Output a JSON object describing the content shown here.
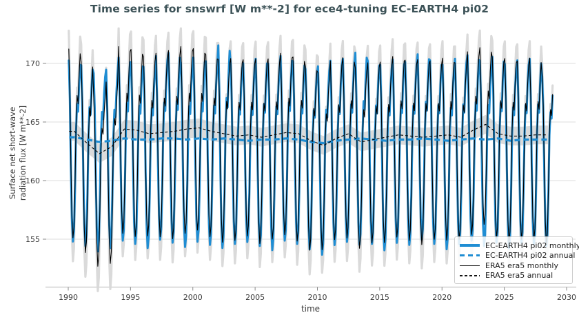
{
  "title": "Time series for snswrf [W m**-2] for ece4-tuning EC-EARTH4 pi02",
  "colors": {
    "ec_blue": "#1f8dd3",
    "era5_black": "#000000",
    "band_gray": "#bdbdbd",
    "shadow_gray": "#d6d6d6",
    "grid_gray": "#dcdcdc",
    "spine_gray": "#c4c4c4",
    "tick_gray": "#8a8a8a",
    "tick_label_color": "#3a3a3a",
    "title_color": "#3c5257"
  },
  "axes": {
    "xlabel": "time",
    "ylabel_line1": "Surface net short-wave",
    "ylabel_line2": "radiation flux [W m**-2]"
  },
  "legend": {
    "position": "lower right",
    "items": [
      {
        "label": "EC-EARTH4 pi02 monthly",
        "style": "solid",
        "color": "#1f8dd3",
        "thick": true
      },
      {
        "label": "EC-EARTH4 pi02 annual",
        "style": "dashed",
        "color": "#1f8dd3",
        "thick": true
      },
      {
        "label": "ERA5 era5 monthly",
        "style": "solid",
        "color": "#000000",
        "thick": false
      },
      {
        "label": "ERA5 era5 annual",
        "style": "dashed",
        "color": "#000000",
        "thick": false
      }
    ]
  },
  "chart_data": {
    "type": "line",
    "title": "Time series for snswrf [W m**-2] for ece4-tuning EC-EARTH4 pi02",
    "xlabel": "time",
    "ylabel": "Surface net short-wave radiation flux [W m**-2]",
    "x_ticks": [
      1990,
      1995,
      2000,
      2005,
      2010,
      2015,
      2020,
      2025,
      2030
    ],
    "y_ticks": [
      155,
      160,
      165,
      170
    ],
    "xlim": [
      1988.2,
      2030.7
    ],
    "ylim": [
      151.5,
      172.7
    ],
    "grid": "horizontal",
    "legend_position": "lower right",
    "start_year": 1990,
    "n_years": 39,
    "last_year_months": 11,
    "month_offsets": [
      6.9,
      3.5,
      -2.5,
      -7.0,
      -8.9,
      -8.0,
      -4.5,
      0.5,
      3.0,
      2.3,
      4.8,
      6.5
    ],
    "band_halfwidth": 0.8,
    "shadow_scale": 1.22,
    "series": {
      "ec_annual": [
        163.7,
        163.5,
        163.3,
        163.4,
        163.6,
        163.5,
        163.5,
        163.6,
        163.6,
        163.5,
        163.6,
        163.5,
        163.6,
        163.5,
        163.4,
        163.5,
        163.5,
        163.6,
        163.5,
        163.3,
        163.2,
        163.4,
        163.5,
        163.6,
        163.5,
        163.4,
        163.5,
        163.5,
        163.6,
        163.5,
        163.4,
        163.5,
        163.6,
        163.5,
        163.6,
        163.4,
        163.5,
        163.5,
        163.5
      ],
      "era5_annual": [
        164.2,
        163.2,
        162.3,
        162.9,
        164.4,
        164.3,
        164.0,
        164.1,
        164.2,
        164.4,
        164.5,
        164.2,
        164.0,
        163.8,
        163.9,
        163.7,
        163.9,
        164.1,
        164.0,
        163.4,
        163.0,
        163.6,
        164.0,
        163.3,
        163.5,
        163.7,
        163.9,
        163.8,
        163.7,
        163.8,
        163.9,
        163.7,
        164.3,
        164.8,
        164.0,
        163.8,
        163.8,
        163.9,
        163.9
      ],
      "ec_peak_amp": [
        0.95,
        0.92,
        0.85,
        0.88,
        1.0,
        0.96,
        0.9,
        1.02,
        1.06,
        0.95,
        1.0,
        0.97,
        1.15,
        0.93,
        0.96,
        1.0,
        0.94,
        1.02,
        0.97,
        0.9,
        0.95,
        0.99,
        1.0,
        1.06,
        0.97,
        0.94,
        0.99,
        0.96,
        1.04,
        0.98,
        0.94,
        1.0,
        1.03,
        0.98,
        1.01,
        0.95,
        0.98,
        1.0,
        0.78
      ],
      "ec_trough_amp": [
        1.0,
        1.02,
        1.05,
        1.03,
        0.98,
        1.0,
        1.04,
        0.97,
        1.0,
        1.03,
        0.99,
        1.01,
        1.05,
        1.0,
        0.97,
        1.02,
        1.06,
        0.98,
        1.0,
        1.03,
        1.07,
        1.0,
        0.98,
        1.02,
        1.0,
        1.05,
        0.99,
        1.01,
        0.97,
        1.0,
        1.04,
        1.0,
        0.98,
        1.02,
        1.0,
        1.03,
        0.99,
        1.0,
        1.02
      ],
      "era5_peak_amp": [
        1.02,
        1.0,
        0.72,
        0.8,
        1.02,
        1.0,
        0.95,
        0.98,
        1.0,
        1.02,
        0.98,
        0.95,
        0.92,
        0.96,
        0.93,
        0.97,
        0.94,
        0.98,
        0.95,
        0.92,
        0.9,
        0.96,
        0.94,
        0.92,
        0.95,
        0.93,
        0.97,
        0.94,
        0.96,
        0.93,
        0.95,
        0.92,
        0.97,
        0.95,
        0.94,
        0.96,
        0.93,
        0.95,
        0.72
      ],
      "era5_trough_amp": [
        1.02,
        1.05,
        1.08,
        1.12,
        1.0,
        1.02,
        0.98,
        1.0,
        1.03,
        1.0,
        0.98,
        1.01,
        1.04,
        1.0,
        0.97,
        1.02,
        1.0,
        0.98,
        1.03,
        1.05,
        1.0,
        0.97,
        1.0,
        1.02,
        0.99,
        1.01,
        0.98,
        1.0,
        1.03,
        0.99,
        1.01,
        0.98,
        1.0,
        0.96,
        1.0,
        1.02,
        0.99,
        1.0,
        1.05
      ]
    },
    "series_names": [
      "EC-EARTH4 pi02 monthly",
      "EC-EARTH4 pi02 annual",
      "ERA5 era5 monthly",
      "ERA5 era5 annual"
    ]
  }
}
